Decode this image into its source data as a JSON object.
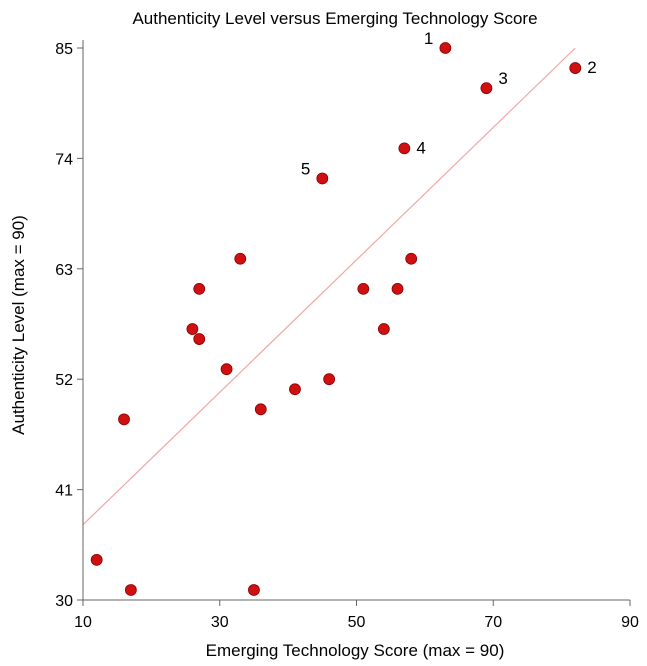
{
  "chart_data": {
    "type": "scatter",
    "title": "Authenticity Level versus Emerging Technology Score",
    "xlabel": "Emerging Technology Score (max = 90)",
    "ylabel": "Authenticity Level (max = 90)",
    "xlim": [
      10,
      90
    ],
    "ylim": [
      30,
      85
    ],
    "xticks": [
      "10",
      "30",
      "50",
      "70",
      "90"
    ],
    "yticks": [
      "30",
      "41",
      "52",
      "63",
      "74",
      "85"
    ],
    "grid": false,
    "legend": "none",
    "point_color": "#d01010",
    "trendline": {
      "color": "#f2a6a6",
      "x": [
        10,
        82
      ],
      "y": [
        37.5,
        85
      ]
    },
    "points": [
      {
        "x": 63,
        "y": 85,
        "label": "1"
      },
      {
        "x": 82,
        "y": 83,
        "label": "2"
      },
      {
        "x": 69,
        "y": 81,
        "label": "3"
      },
      {
        "x": 57,
        "y": 75,
        "label": "4"
      },
      {
        "x": 45,
        "y": 72,
        "label": "5"
      },
      {
        "x": 33,
        "y": 64,
        "label": ""
      },
      {
        "x": 58,
        "y": 64,
        "label": ""
      },
      {
        "x": 27,
        "y": 61,
        "label": ""
      },
      {
        "x": 51,
        "y": 61,
        "label": ""
      },
      {
        "x": 56,
        "y": 61,
        "label": ""
      },
      {
        "x": 26,
        "y": 57,
        "label": ""
      },
      {
        "x": 54,
        "y": 57,
        "label": ""
      },
      {
        "x": 27,
        "y": 56,
        "label": ""
      },
      {
        "x": 31,
        "y": 53,
        "label": ""
      },
      {
        "x": 46,
        "y": 52,
        "label": ""
      },
      {
        "x": 41,
        "y": 51,
        "label": ""
      },
      {
        "x": 36,
        "y": 49,
        "label": ""
      },
      {
        "x": 16,
        "y": 48,
        "label": ""
      },
      {
        "x": 12,
        "y": 34,
        "label": ""
      },
      {
        "x": 17,
        "y": 31,
        "label": ""
      },
      {
        "x": 35,
        "y": 31,
        "label": ""
      }
    ]
  }
}
